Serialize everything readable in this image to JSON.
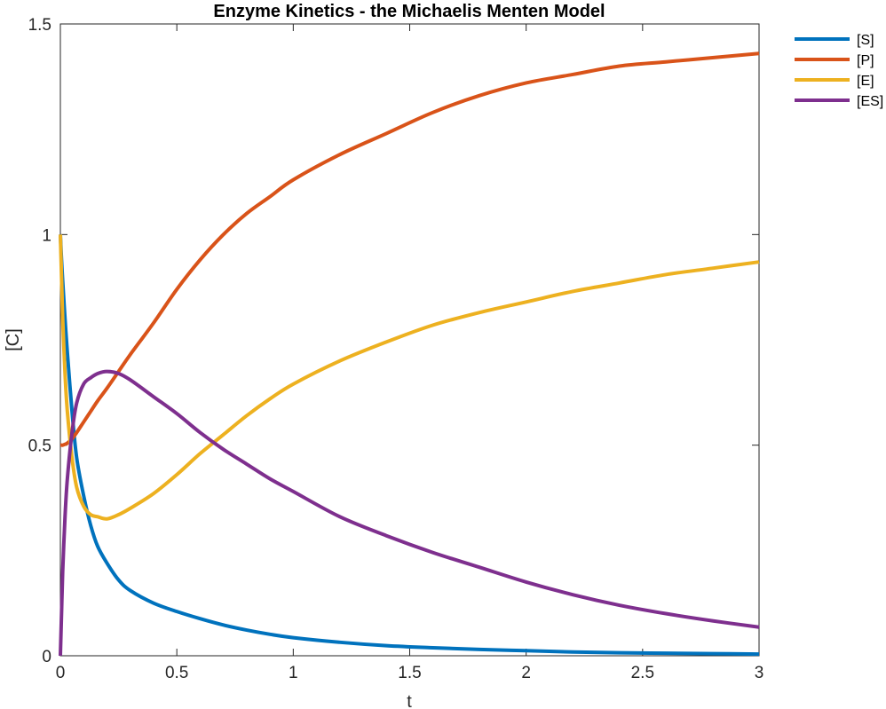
{
  "chart_data": {
    "type": "line",
    "title": "Enzyme Kinetics - the Michaelis Menten Model",
    "xlabel": "t",
    "ylabel": "[C]",
    "xlim": [
      0,
      3
    ],
    "ylim": [
      0,
      1.5
    ],
    "xticks": [
      0,
      0.5,
      1,
      1.5,
      2,
      2.5,
      3
    ],
    "xtick_labels": [
      "0",
      "0.5",
      "1",
      "1.5",
      "2",
      "2.5",
      "3"
    ],
    "yticks": [
      0,
      0.5,
      1,
      1.5
    ],
    "ytick_labels": [
      "0",
      "0.5",
      "1",
      "1.5"
    ],
    "grid": false,
    "legend_position": "outside-top-right",
    "x": [
      0,
      0.005,
      0.01,
      0.02,
      0.03,
      0.05,
      0.07,
      0.1,
      0.13,
      0.16,
      0.2,
      0.25,
      0.3,
      0.4,
      0.5,
      0.6,
      0.7,
      0.8,
      0.9,
      1.0,
      1.2,
      1.4,
      1.6,
      1.8,
      2.0,
      2.2,
      2.4,
      2.6,
      2.8,
      3.0
    ],
    "series": [
      {
        "name": "[S]",
        "color": "#0072BD",
        "values": [
          1.0,
          0.94,
          0.89,
          0.8,
          0.72,
          0.58,
          0.47,
          0.38,
          0.31,
          0.26,
          0.22,
          0.18,
          0.155,
          0.125,
          0.105,
          0.088,
          0.073,
          0.061,
          0.051,
          0.043,
          0.032,
          0.024,
          0.019,
          0.015,
          0.012,
          0.009,
          0.007,
          0.006,
          0.005,
          0.004
        ]
      },
      {
        "name": "[P]",
        "color": "#D95319",
        "values": [
          0.5,
          0.5,
          0.5,
          0.502,
          0.505,
          0.515,
          0.53,
          0.555,
          0.58,
          0.605,
          0.635,
          0.675,
          0.715,
          0.79,
          0.87,
          0.94,
          1.0,
          1.05,
          1.09,
          1.13,
          1.19,
          1.24,
          1.29,
          1.33,
          1.36,
          1.38,
          1.4,
          1.41,
          1.42,
          1.43
        ]
      },
      {
        "name": "[E]",
        "color": "#EDB120",
        "values": [
          1.0,
          0.9,
          0.8,
          0.67,
          0.58,
          0.47,
          0.4,
          0.355,
          0.335,
          0.33,
          0.325,
          0.335,
          0.35,
          0.385,
          0.43,
          0.48,
          0.525,
          0.57,
          0.61,
          0.645,
          0.7,
          0.745,
          0.785,
          0.815,
          0.84,
          0.865,
          0.885,
          0.905,
          0.92,
          0.935
        ]
      },
      {
        "name": "[ES]",
        "color": "#7E2F8E",
        "values": [
          0.0,
          0.1,
          0.2,
          0.33,
          0.42,
          0.53,
          0.6,
          0.645,
          0.66,
          0.67,
          0.675,
          0.67,
          0.655,
          0.615,
          0.575,
          0.53,
          0.49,
          0.455,
          0.42,
          0.39,
          0.33,
          0.285,
          0.245,
          0.21,
          0.175,
          0.145,
          0.12,
          0.1,
          0.083,
          0.068
        ]
      }
    ]
  }
}
